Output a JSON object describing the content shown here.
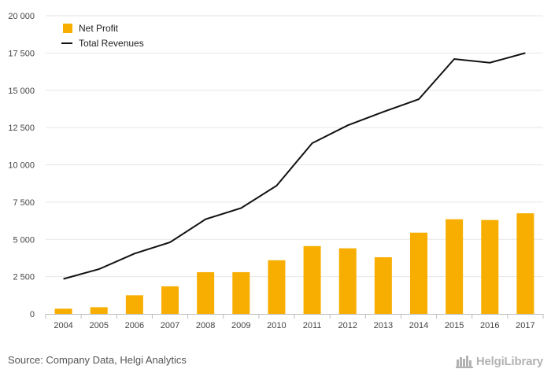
{
  "chart_data": {
    "type": "bar",
    "categories": [
      "2004",
      "2005",
      "2006",
      "2007",
      "2008",
      "2009",
      "2010",
      "2011",
      "2012",
      "2013",
      "2014",
      "2015",
      "2016",
      "2017"
    ],
    "series": [
      {
        "name": "Net Profit",
        "type": "bar",
        "color": "#f7ae00",
        "values": [
          350,
          450,
          1250,
          1850,
          2800,
          2800,
          3600,
          4550,
          4400,
          3800,
          5450,
          6350,
          6300,
          6750
        ]
      },
      {
        "name": "Total Revenues",
        "type": "line",
        "color": "#111111",
        "values": [
          2350,
          3000,
          4050,
          4800,
          6350,
          7100,
          8600,
          11450,
          12650,
          13550,
          14400,
          17100,
          16850,
          17500
        ]
      }
    ],
    "ylim": [
      0,
      20000
    ],
    "yticks": [
      0,
      2500,
      5000,
      7500,
      10000,
      12500,
      15000,
      17500,
      20000
    ],
    "ytick_labels": [
      "0",
      "2 500",
      "5 000",
      "7 500",
      "10 000",
      "12 500",
      "15 000",
      "17 500",
      "20 000"
    ],
    "legend": "top-left",
    "grid": true
  },
  "footer": {
    "source": "Source: Company Data, Helgi Analytics",
    "brand": "HelgiLibrary"
  }
}
